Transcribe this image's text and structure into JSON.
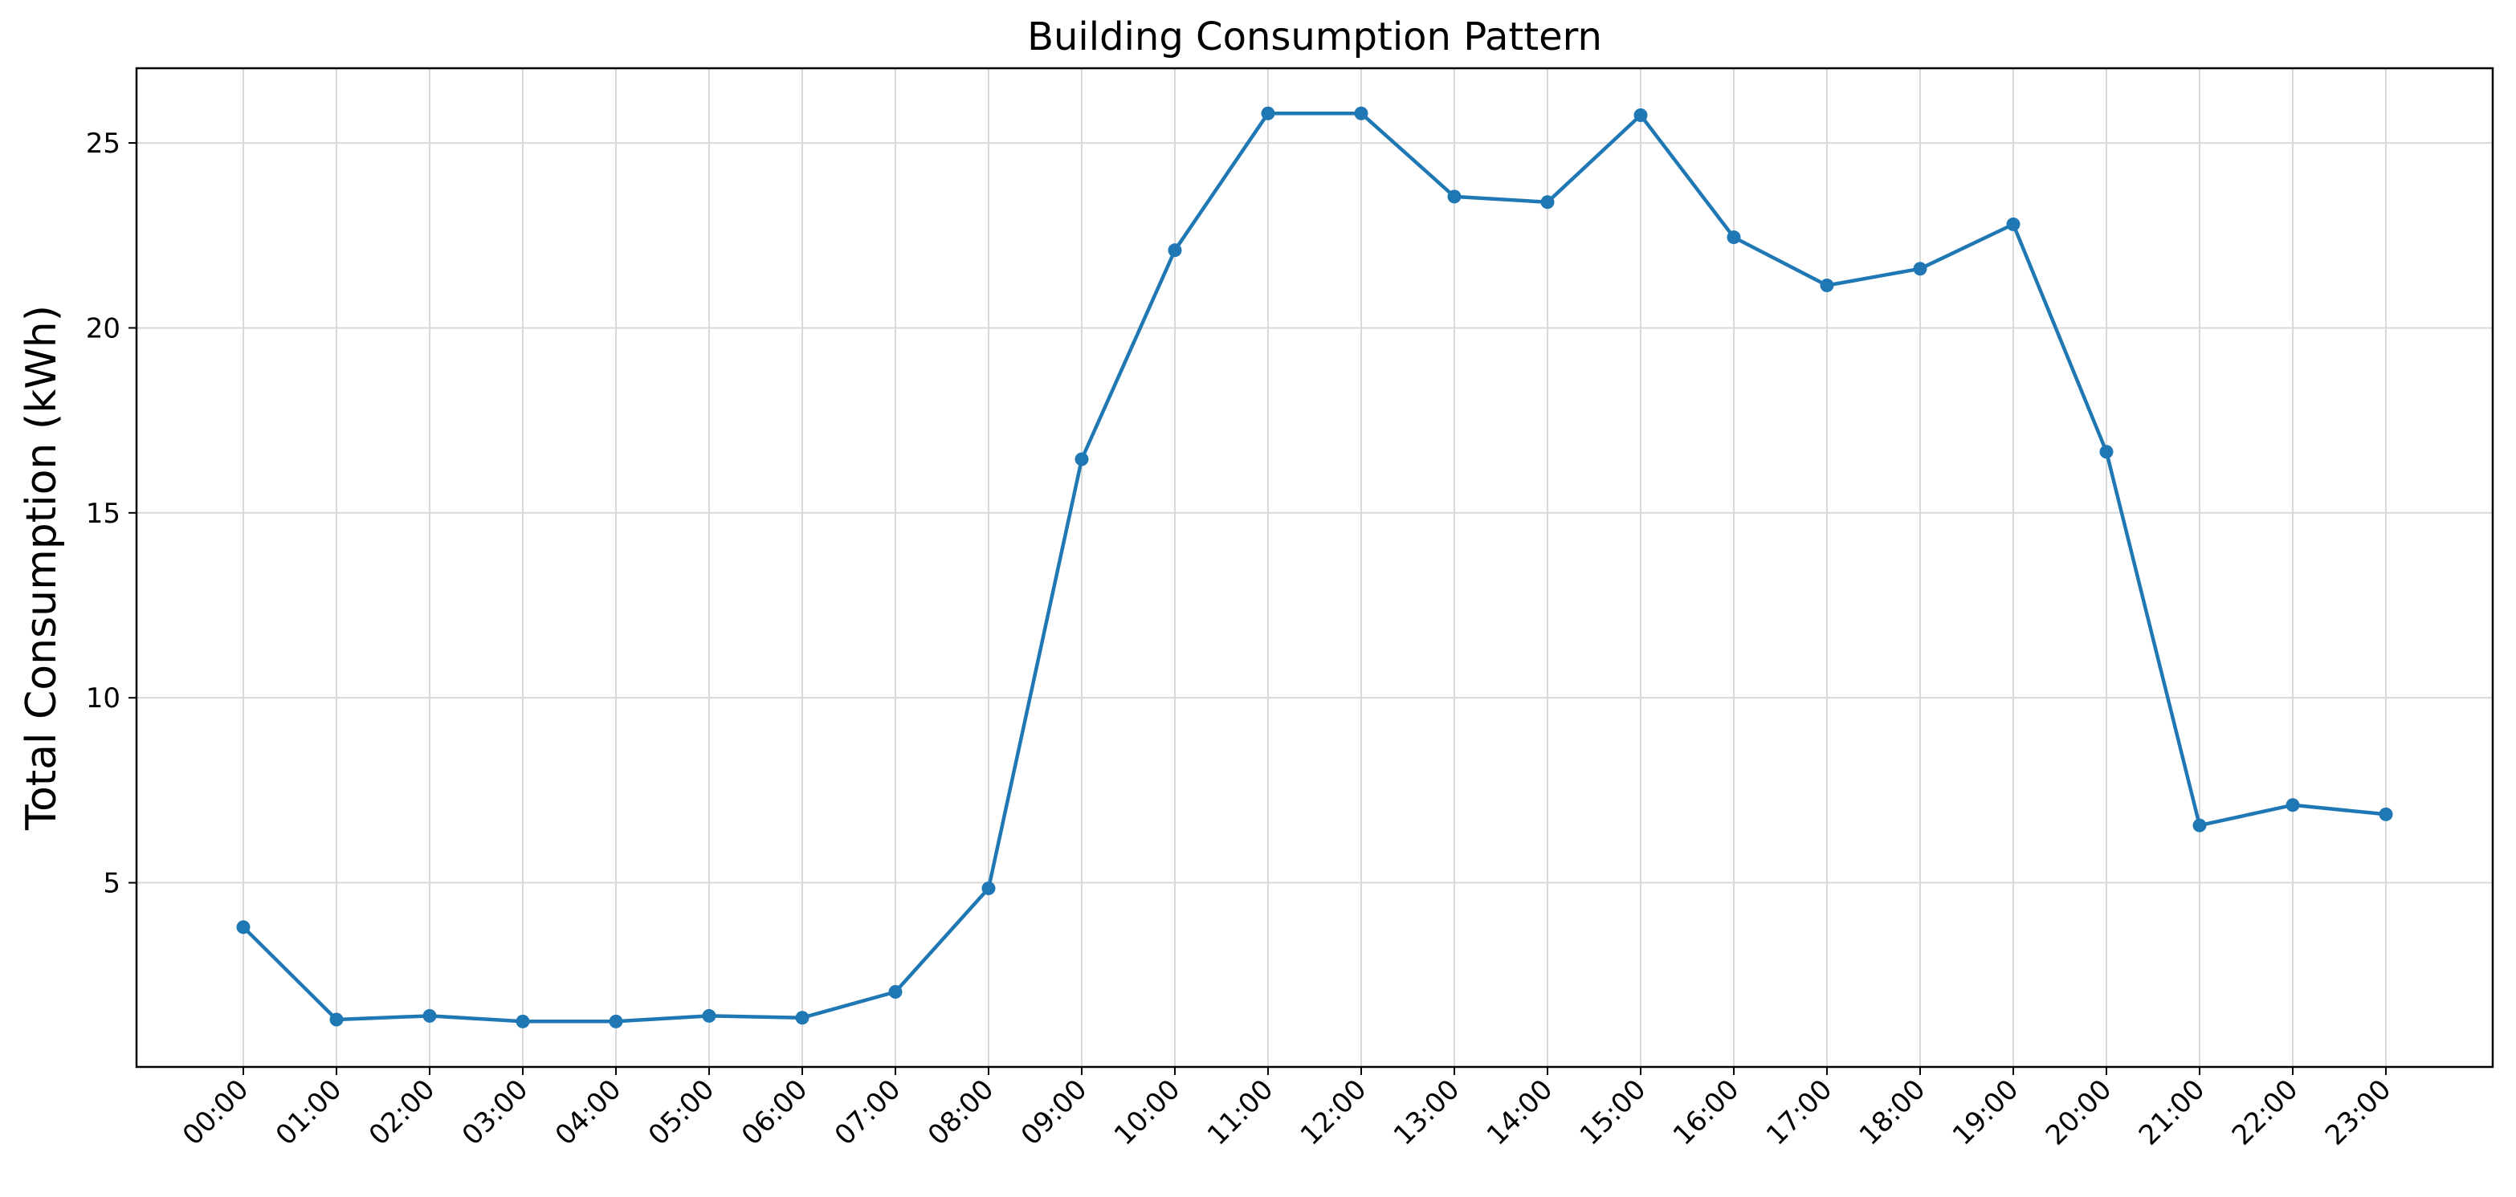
{
  "chart_data": {
    "type": "line",
    "title": "Building Consumption Pattern",
    "xlabel": "",
    "ylabel": "Total Consumption (kWh)",
    "categories": [
      "00:00",
      "01:00",
      "02:00",
      "03:00",
      "04:00",
      "05:00",
      "06:00",
      "07:00",
      "08:00",
      "09:00",
      "10:00",
      "11:00",
      "12:00",
      "13:00",
      "14:00",
      "15:00",
      "16:00",
      "17:00",
      "18:00",
      "19:00",
      "20:00",
      "21:00",
      "22:00",
      "23:00"
    ],
    "series": [
      {
        "name": "",
        "values": [
          3.8,
          1.3,
          1.4,
          1.25,
          1.25,
          1.4,
          1.35,
          2.05,
          4.85,
          16.45,
          22.1,
          25.8,
          25.8,
          23.55,
          23.4,
          25.75,
          22.45,
          21.15,
          21.6,
          22.8,
          16.65,
          6.55,
          7.1,
          6.85
        ],
        "color": "#1f77b4"
      }
    ],
    "yticks": [
      5,
      10,
      15,
      20,
      25
    ],
    "ylim": [
      0.02,
      27.02
    ],
    "grid": true,
    "legend": "none"
  }
}
